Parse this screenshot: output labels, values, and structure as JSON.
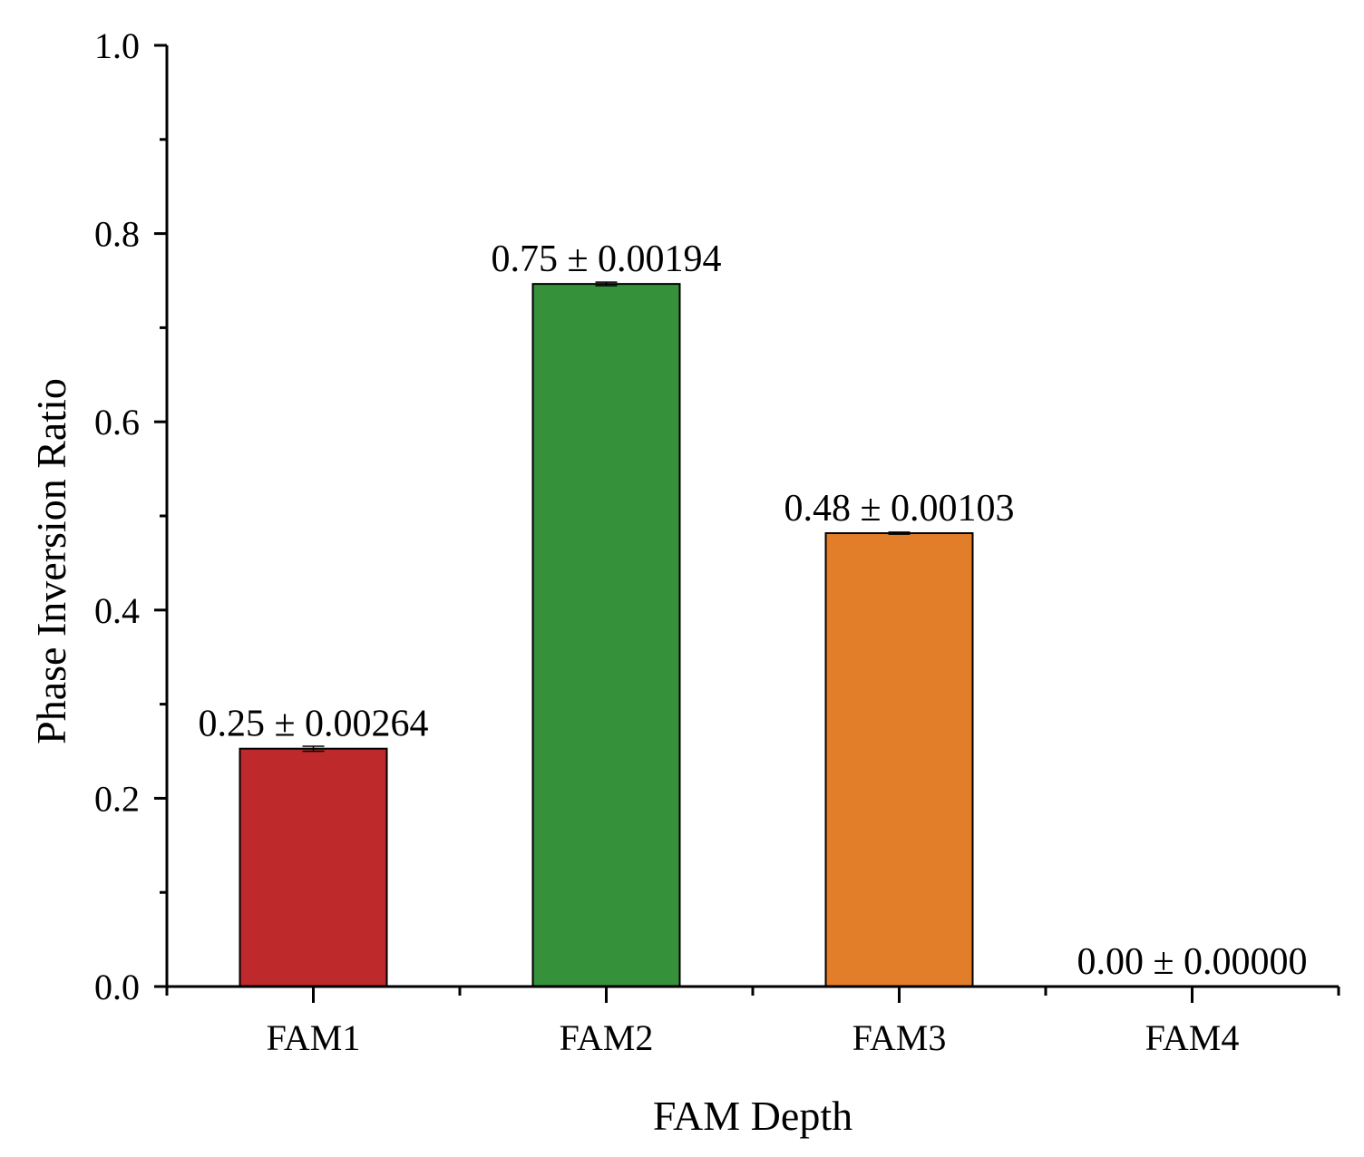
{
  "chart_data": {
    "type": "bar",
    "title": "",
    "xlabel": "FAM Depth",
    "ylabel": "Phase Inversion Ratio",
    "categories": [
      "FAM1",
      "FAM2",
      "FAM3",
      "FAM4"
    ],
    "values": [
      0.2527,
      0.7465,
      0.4817,
      0.0
    ],
    "errors": [
      0.00264,
      0.00194,
      0.00103,
      0.0
    ],
    "value_labels": [
      "0.25 ± 0.00264",
      "0.75 ± 0.00194",
      "0.48 ± 0.00103",
      "0.00 ± 0.00000"
    ],
    "colors": [
      "#be2a2c",
      "#35913a",
      "#e27d29",
      "#ffffff"
    ],
    "ylim": [
      0.0,
      1.0
    ],
    "yticks": [
      0.0,
      0.2,
      0.4,
      0.6,
      0.8,
      1.0
    ],
    "ytick_labels": [
      "0.0",
      "0.2",
      "0.4",
      "0.6",
      "0.8",
      "1.0"
    ],
    "grid": false,
    "legend": "none"
  }
}
